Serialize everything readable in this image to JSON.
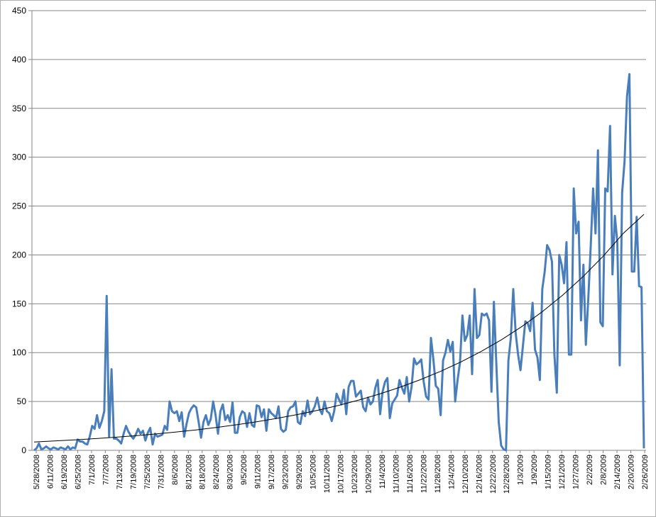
{
  "chart_data": {
    "type": "line",
    "title": "",
    "xlabel": "",
    "ylabel": "",
    "ylim": [
      0,
      450
    ],
    "y_ticks": [
      "0",
      "50",
      "100",
      "150",
      "200",
      "250",
      "300",
      "350",
      "400",
      "450"
    ],
    "x_tick_labels": [
      "5/28/2008",
      "6/11/2008",
      "6/19/2008",
      "6/25/2008",
      "7/1/2008",
      "7/7/2008",
      "7/13/2008",
      "7/19/2008",
      "7/25/2008",
      "7/31/2008",
      "8/6/2008",
      "8/12/2008",
      "8/18/2008",
      "8/24/2008",
      "8/30/2008",
      "9/5/2008",
      "9/11/2008",
      "9/17/2008",
      "9/23/2008",
      "9/29/2008",
      "10/5/2008",
      "10/11/2008",
      "10/17/2008",
      "10/23/2008",
      "10/29/2008",
      "11/4/2008",
      "11/10/2008",
      "11/16/2008",
      "11/22/2008",
      "11/28/2008",
      "12/4/2008",
      "12/10/2008",
      "12/16/2008",
      "12/22/2008",
      "12/28/2008",
      "1/3/2009",
      "1/9/2009",
      "1/15/2009",
      "1/21/2009",
      "1/27/2009",
      "2/2/2009",
      "2/8/2009",
      "2/14/2009",
      "2/20/2009",
      "2/26/2009"
    ],
    "grid": true,
    "legend": "none",
    "series": [
      {
        "values": [
          0,
          2,
          7,
          1,
          2,
          4,
          2,
          1,
          3,
          2,
          1,
          3,
          2,
          1,
          4,
          1,
          3,
          2,
          11,
          9,
          9,
          7,
          6,
          14,
          25,
          22,
          36,
          23,
          30,
          40,
          158,
          14,
          83,
          12,
          12,
          10,
          7,
          17,
          25,
          19,
          15,
          12,
          16,
          22,
          17,
          20,
          10,
          18,
          23,
          6,
          17,
          14,
          15,
          16,
          25,
          21,
          50,
          40,
          38,
          40,
          30,
          39,
          14,
          27,
          38,
          43,
          46,
          44,
          29,
          13,
          29,
          36,
          26,
          32,
          50,
          36,
          17,
          40,
          47,
          31,
          36,
          29,
          49,
          18,
          18,
          34,
          40,
          38,
          24,
          38,
          26,
          24,
          46,
          45,
          34,
          42,
          20,
          42,
          38,
          36,
          33,
          45,
          22,
          19,
          21,
          40,
          44,
          45,
          50,
          29,
          27,
          40,
          35,
          51,
          37,
          40,
          45,
          54,
          42,
          37,
          50,
          40,
          38,
          30,
          40,
          58,
          52,
          47,
          62,
          37,
          65,
          71,
          71,
          55,
          58,
          61,
          44,
          40,
          54,
          47,
          50,
          64,
          72,
          37,
          60,
          70,
          74,
          33,
          48,
          52,
          56,
          72,
          64,
          58,
          75,
          50,
          65,
          94,
          88,
          90,
          93,
          70,
          55,
          52,
          115,
          93,
          66,
          63,
          36,
          92,
          100,
          113,
          101,
          111,
          50,
          72,
          90,
          138,
          112,
          118,
          138,
          78,
          165,
          115,
          118,
          140,
          138,
          140,
          133,
          60,
          152,
          89,
          29,
          5,
          1,
          0,
          92,
          115,
          165,
          120,
          98,
          82,
          107,
          132,
          130,
          122,
          151,
          103,
          95,
          72,
          165,
          183,
          210,
          205,
          193,
          98,
          59,
          200,
          190,
          171,
          213,
          98,
          98,
          268,
          222,
          234,
          133,
          190,
          108,
          155,
          208,
          268,
          222,
          307,
          131,
          127,
          268,
          265,
          332,
          180,
          240,
          213,
          87,
          264,
          296,
          362,
          385,
          183,
          183,
          239,
          168,
          167,
          2
        ]
      }
    ],
    "trendline": {
      "type": "exponential",
      "values": [
        8.5,
        9.6,
        10.7,
        12.0,
        13.4,
        15.0,
        16.8,
        18.8,
        21.0,
        23.5,
        26.3,
        29.4,
        32.9,
        36.8,
        41.2,
        46.1,
        51.6,
        57.7,
        64.6,
        72.3,
        80.9,
        90.5,
        101.3,
        113.3,
        126.8,
        141.9,
        158.8,
        177.7,
        198.8,
        222.4,
        241.5
      ]
    }
  }
}
